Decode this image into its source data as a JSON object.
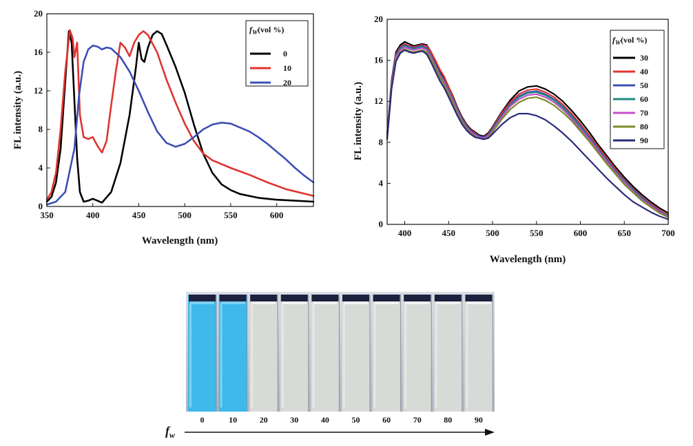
{
  "chart_data": [
    {
      "type": "line",
      "xlabel": "Wavelength (nm)",
      "ylabel": "FL intensity (a.u.)",
      "xlim": [
        350,
        640
      ],
      "ylim": [
        0,
        20
      ],
      "xticks": [
        "350",
        "400",
        "450",
        "500",
        "550",
        "600"
      ],
      "yticks": [
        "0",
        "4",
        "8",
        "12",
        "16",
        "20"
      ],
      "legend": {
        "title_prefix": "f",
        "title_sub": "W",
        "title_suffix": "(vol %)",
        "position": "top-right"
      },
      "series": [
        {
          "name": "0",
          "color": "#000000",
          "x": [
            350,
            355,
            360,
            365,
            370,
            374,
            377,
            380,
            383,
            386,
            390,
            395,
            400,
            405,
            410,
            420,
            430,
            440,
            447,
            450,
            453,
            456,
            460,
            465,
            470,
            475,
            480,
            490,
            500,
            510,
            520,
            530,
            540,
            550,
            560,
            580,
            600,
            620,
            640
          ],
          "y": [
            0.5,
            1.0,
            2.5,
            6.0,
            13.0,
            18.2,
            17.0,
            11.0,
            5.0,
            1.5,
            0.5,
            0.6,
            0.8,
            0.6,
            0.4,
            1.5,
            4.5,
            9.5,
            14.5,
            17.0,
            15.3,
            15.0,
            16.5,
            17.8,
            18.2,
            17.9,
            16.8,
            14.5,
            11.8,
            8.5,
            5.5,
            3.5,
            2.3,
            1.7,
            1.3,
            0.9,
            0.7,
            0.6,
            0.5
          ]
        },
        {
          "name": "10",
          "color": "#e0332f",
          "x": [
            350,
            355,
            360,
            365,
            370,
            375,
            378,
            380,
            383,
            386,
            390,
            395,
            400,
            405,
            410,
            415,
            420,
            425,
            430,
            435,
            440,
            445,
            450,
            455,
            460,
            470,
            480,
            490,
            500,
            510,
            520,
            530,
            550,
            570,
            590,
            610,
            640
          ],
          "y": [
            0.7,
            1.5,
            3.5,
            8.0,
            14.0,
            18.3,
            17.5,
            15.5,
            17.0,
            9.5,
            7.2,
            7.0,
            7.2,
            6.3,
            5.6,
            6.8,
            10.5,
            14.0,
            17.0,
            16.5,
            15.6,
            17.0,
            17.8,
            18.2,
            17.8,
            16.0,
            13.2,
            10.8,
            8.6,
            6.8,
            5.5,
            4.8,
            4.0,
            3.3,
            2.5,
            1.8,
            1.1
          ]
        },
        {
          "name": "20",
          "color": "#3c4fb5",
          "x": [
            350,
            360,
            370,
            380,
            385,
            390,
            395,
            400,
            405,
            410,
            415,
            420,
            430,
            440,
            450,
            460,
            470,
            480,
            490,
            500,
            510,
            520,
            530,
            540,
            550,
            560,
            570,
            580,
            590,
            600,
            610,
            620,
            630,
            640
          ],
          "y": [
            0.2,
            0.5,
            1.5,
            6.0,
            11.5,
            15.0,
            16.3,
            16.7,
            16.6,
            16.3,
            16.5,
            16.4,
            15.5,
            14.0,
            12.0,
            9.8,
            7.8,
            6.6,
            6.2,
            6.5,
            7.2,
            8.0,
            8.5,
            8.7,
            8.6,
            8.2,
            7.8,
            7.2,
            6.5,
            5.7,
            4.9,
            4.0,
            3.2,
            2.5
          ]
        }
      ]
    },
    {
      "type": "line",
      "xlabel": "Wavelength (nm)",
      "ylabel": "FL intensity (a.u.)",
      "xlim": [
        380,
        700
      ],
      "ylim": [
        0,
        20
      ],
      "xticks": [
        "400",
        "450",
        "500",
        "550",
        "600",
        "650",
        "700"
      ],
      "yticks": [
        "0",
        "4",
        "8",
        "12",
        "16",
        "20"
      ],
      "legend": {
        "title_prefix": "f",
        "title_sub": "W",
        "title_suffix": "(vol %)",
        "position": "top-right"
      },
      "series": [
        {
          "name": "30",
          "color": "#000000",
          "x": [
            380,
            385,
            390,
            395,
            400,
            405,
            410,
            415,
            420,
            425,
            430,
            435,
            440,
            445,
            450,
            455,
            460,
            465,
            470,
            475,
            480,
            485,
            490,
            495,
            500,
            510,
            520,
            530,
            540,
            550,
            560,
            570,
            580,
            590,
            600,
            610,
            620,
            630,
            640,
            650,
            660,
            670,
            680,
            690,
            700
          ],
          "y": [
            8.8,
            14.0,
            16.8,
            17.5,
            17.8,
            17.6,
            17.4,
            17.5,
            17.6,
            17.5,
            16.8,
            15.9,
            15.0,
            14.3,
            13.4,
            12.5,
            11.4,
            10.5,
            9.8,
            9.3,
            9.0,
            8.7,
            8.6,
            8.9,
            9.5,
            10.9,
            12.1,
            13.0,
            13.4,
            13.5,
            13.2,
            12.7,
            12.0,
            11.1,
            10.1,
            9.0,
            7.8,
            6.7,
            5.6,
            4.6,
            3.7,
            2.9,
            2.2,
            1.6,
            1.1
          ]
        },
        {
          "name": "40",
          "color": "#e0332f",
          "x": [
            380,
            385,
            390,
            395,
            400,
            405,
            410,
            415,
            420,
            425,
            430,
            435,
            440,
            445,
            450,
            455,
            460,
            465,
            470,
            475,
            480,
            485,
            490,
            495,
            500,
            510,
            520,
            530,
            540,
            550,
            560,
            570,
            580,
            590,
            600,
            610,
            620,
            630,
            640,
            650,
            660,
            670,
            680,
            690,
            700
          ],
          "y": [
            8.7,
            13.8,
            16.6,
            17.3,
            17.6,
            17.4,
            17.3,
            17.4,
            17.5,
            17.4,
            16.8,
            16.0,
            15.1,
            14.4,
            13.4,
            12.4,
            11.3,
            10.4,
            9.7,
            9.2,
            8.9,
            8.6,
            8.5,
            8.8,
            9.4,
            10.8,
            11.9,
            12.7,
            13.1,
            13.2,
            12.9,
            12.4,
            11.7,
            10.8,
            9.8,
            8.7,
            7.6,
            6.5,
            5.4,
            4.4,
            3.5,
            2.7,
            2.0,
            1.4,
            0.9
          ]
        },
        {
          "name": "50",
          "color": "#3c4fb5",
          "x": [
            380,
            385,
            390,
            395,
            400,
            405,
            410,
            415,
            420,
            425,
            430,
            435,
            440,
            445,
            450,
            455,
            460,
            465,
            470,
            475,
            480,
            485,
            490,
            495,
            500,
            510,
            520,
            530,
            540,
            550,
            560,
            570,
            580,
            590,
            600,
            610,
            620,
            630,
            640,
            650,
            660,
            670,
            680,
            690,
            700
          ],
          "y": [
            8.6,
            13.7,
            16.5,
            17.2,
            17.5,
            17.3,
            17.2,
            17.3,
            17.4,
            17.2,
            16.5,
            15.6,
            14.7,
            14.0,
            13.1,
            12.2,
            11.2,
            10.3,
            9.6,
            9.1,
            8.8,
            8.6,
            8.5,
            8.7,
            9.3,
            10.6,
            11.7,
            12.5,
            12.9,
            13.0,
            12.7,
            12.2,
            11.5,
            10.6,
            9.6,
            8.5,
            7.4,
            6.3,
            5.2,
            4.3,
            3.4,
            2.6,
            1.9,
            1.3,
            0.8
          ]
        },
        {
          "name": "60",
          "color": "#1f8a80",
          "x": [
            380,
            385,
            390,
            395,
            400,
            405,
            410,
            415,
            420,
            425,
            430,
            435,
            440,
            445,
            450,
            455,
            460,
            465,
            470,
            475,
            480,
            485,
            490,
            495,
            500,
            510,
            520,
            530,
            540,
            550,
            560,
            570,
            580,
            590,
            600,
            610,
            620,
            630,
            640,
            650,
            660,
            670,
            680,
            690,
            700
          ],
          "y": [
            8.5,
            13.6,
            16.4,
            17.1,
            17.4,
            17.2,
            17.1,
            17.2,
            17.3,
            17.1,
            16.4,
            15.5,
            14.6,
            13.9,
            13.0,
            12.1,
            11.1,
            10.2,
            9.5,
            9.0,
            8.7,
            8.5,
            8.4,
            8.6,
            9.2,
            10.5,
            11.6,
            12.4,
            12.8,
            12.9,
            12.6,
            12.1,
            11.4,
            10.5,
            9.5,
            8.4,
            7.3,
            6.2,
            5.1,
            4.2,
            3.3,
            2.5,
            1.8,
            1.2,
            0.8
          ]
        },
        {
          "name": "70",
          "color": "#c34fc8",
          "x": [
            380,
            385,
            390,
            395,
            400,
            405,
            410,
            415,
            420,
            425,
            430,
            435,
            440,
            445,
            450,
            455,
            460,
            465,
            470,
            475,
            480,
            485,
            490,
            495,
            500,
            510,
            520,
            530,
            540,
            550,
            560,
            570,
            580,
            590,
            600,
            610,
            620,
            630,
            640,
            650,
            660,
            670,
            680,
            690,
            700
          ],
          "y": [
            8.5,
            13.5,
            16.3,
            17.0,
            17.3,
            17.1,
            17.0,
            17.1,
            17.2,
            17.0,
            16.3,
            15.4,
            14.5,
            13.8,
            12.9,
            12.0,
            11.0,
            10.1,
            9.4,
            9.0,
            8.7,
            8.5,
            8.4,
            8.6,
            9.1,
            10.4,
            11.5,
            12.2,
            12.6,
            12.7,
            12.4,
            11.9,
            11.2,
            10.3,
            9.3,
            8.3,
            7.2,
            6.1,
            5.0,
            4.1,
            3.2,
            2.4,
            1.8,
            1.2,
            0.7
          ]
        },
        {
          "name": "80",
          "color": "#7d8a2a",
          "x": [
            380,
            385,
            390,
            395,
            400,
            405,
            410,
            415,
            420,
            425,
            430,
            435,
            440,
            445,
            450,
            455,
            460,
            465,
            470,
            475,
            480,
            485,
            490,
            495,
            500,
            510,
            520,
            530,
            540,
            550,
            560,
            570,
            580,
            590,
            600,
            610,
            620,
            630,
            640,
            650,
            660,
            670,
            680,
            690,
            700
          ],
          "y": [
            8.4,
            13.3,
            16.0,
            16.8,
            17.1,
            16.9,
            16.8,
            16.9,
            17.0,
            16.8,
            16.1,
            15.2,
            14.3,
            13.6,
            12.7,
            11.8,
            10.8,
            10.0,
            9.3,
            8.9,
            8.6,
            8.4,
            8.3,
            8.5,
            9.0,
            10.2,
            11.2,
            11.9,
            12.3,
            12.4,
            12.1,
            11.6,
            10.9,
            10.1,
            9.1,
            8.1,
            7.0,
            5.9,
            4.9,
            3.9,
            3.1,
            2.3,
            1.7,
            1.1,
            0.7
          ]
        },
        {
          "name": "90",
          "color": "#2a2a7a",
          "x": [
            380,
            385,
            390,
            395,
            400,
            405,
            410,
            415,
            420,
            425,
            430,
            435,
            440,
            445,
            450,
            455,
            460,
            465,
            470,
            475,
            480,
            485,
            490,
            495,
            500,
            510,
            520,
            530,
            540,
            550,
            560,
            570,
            580,
            590,
            600,
            610,
            620,
            630,
            640,
            650,
            660,
            670,
            680,
            690,
            700
          ],
          "y": [
            8.3,
            13.2,
            15.9,
            16.7,
            17.0,
            16.8,
            16.7,
            16.8,
            16.9,
            16.6,
            15.8,
            14.9,
            14.0,
            13.3,
            12.4,
            11.5,
            10.6,
            9.8,
            9.2,
            8.8,
            8.5,
            8.4,
            8.3,
            8.4,
            8.8,
            9.7,
            10.4,
            10.8,
            10.8,
            10.6,
            10.2,
            9.6,
            8.9,
            8.1,
            7.2,
            6.3,
            5.4,
            4.5,
            3.7,
            2.9,
            2.2,
            1.7,
            1.2,
            0.8,
            0.5
          ]
        }
      ]
    }
  ],
  "photo": {
    "samples": [
      "0",
      "10",
      "20",
      "30",
      "40",
      "50",
      "60",
      "70",
      "80",
      "90"
    ],
    "emission_colors": [
      "#3fb8ea",
      "#3fb8ea",
      "#d8dad8",
      "#d8dad8",
      "#d8dad8",
      "#d8dad8",
      "#d8dad8",
      "#d8dad8",
      "#d8dad8",
      "#d8dad8"
    ],
    "axis_prefix": "f",
    "axis_sub": "w"
  }
}
